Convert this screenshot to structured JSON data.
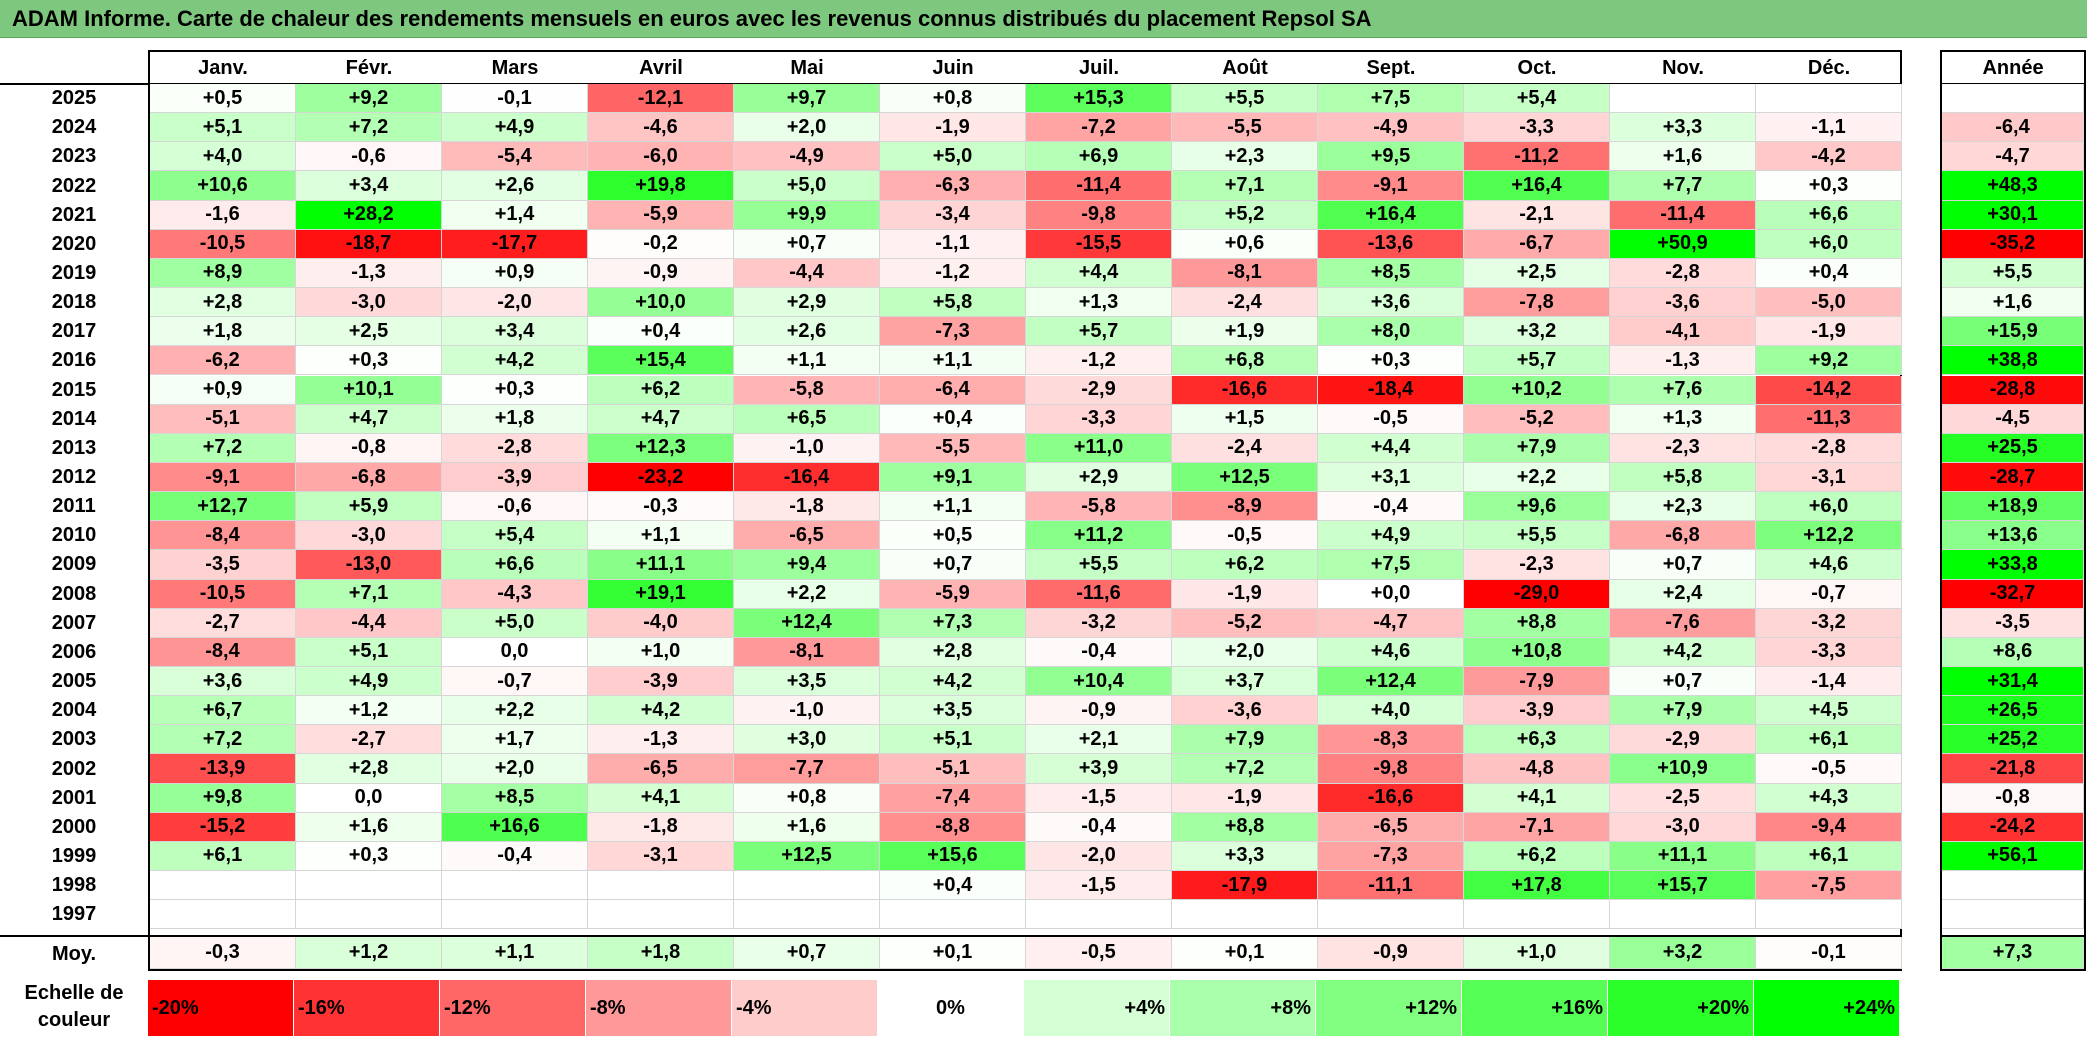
{
  "title": "ADAM Informe. Carte de chaleur des rendements mensuels en euros avec les revenus connus distribués du placement Repsol SA",
  "colors": {
    "title_bg": "#7ec77e",
    "neg_max": "#ff0000",
    "pos_max": "#00ff00",
    "neutral": "#ffffff"
  },
  "chart_data": {
    "type": "heatmap",
    "title": "ADAM Informe. Carte de chaleur des rendements mensuels en euros avec les revenus connus distribués du placement Repsol SA",
    "months": [
      "Janv.",
      "Févr.",
      "Mars",
      "Avril",
      "Mai",
      "Juin",
      "Juil.",
      "Août",
      "Sept.",
      "Oct.",
      "Nov.",
      "Déc."
    ],
    "year_header": "Année",
    "rows": [
      {
        "year": "2025",
        "values": [
          "+0,5",
          "+9,2",
          "-0,1",
          "-12,1",
          "+9,7",
          "+0,8",
          "+15,3",
          "+5,5",
          "+7,5",
          "+5,4",
          "",
          ""
        ],
        "annual": ""
      },
      {
        "year": "2024",
        "values": [
          "+5,1",
          "+7,2",
          "+4,9",
          "-4,6",
          "+2,0",
          "-1,9",
          "-7,2",
          "-5,5",
          "-4,9",
          "-3,3",
          "+3,3",
          "-1,1"
        ],
        "annual": "-6,4"
      },
      {
        "year": "2023",
        "values": [
          "+4,0",
          "-0,6",
          "-5,4",
          "-6,0",
          "-4,9",
          "+5,0",
          "+6,9",
          "+2,3",
          "+9,5",
          "-11,2",
          "+1,6",
          "-4,2"
        ],
        "annual": "-4,7"
      },
      {
        "year": "2022",
        "values": [
          "+10,6",
          "+3,4",
          "+2,6",
          "+19,8",
          "+5,0",
          "-6,3",
          "-11,4",
          "+7,1",
          "-9,1",
          "+16,4",
          "+7,7",
          "+0,3"
        ],
        "annual": "+48,3"
      },
      {
        "year": "2021",
        "values": [
          "-1,6",
          "+28,2",
          "+1,4",
          "-5,9",
          "+9,9",
          "-3,4",
          "-9,8",
          "+5,2",
          "+16,4",
          "-2,1",
          "-11,4",
          "+6,6"
        ],
        "annual": "+30,1"
      },
      {
        "year": "2020",
        "values": [
          "-10,5",
          "-18,7",
          "-17,7",
          "-0,2",
          "+0,7",
          "-1,1",
          "-15,5",
          "+0,6",
          "-13,6",
          "-6,7",
          "+50,9",
          "+6,0"
        ],
        "annual": "-35,2"
      },
      {
        "year": "2019",
        "values": [
          "+8,9",
          "-1,3",
          "+0,9",
          "-0,9",
          "-4,4",
          "-1,2",
          "+4,4",
          "-8,1",
          "+8,5",
          "+2,5",
          "-2,8",
          "+0,4"
        ],
        "annual": "+5,5"
      },
      {
        "year": "2018",
        "values": [
          "+2,8",
          "-3,0",
          "-2,0",
          "+10,0",
          "+2,9",
          "+5,8",
          "+1,3",
          "-2,4",
          "+3,6",
          "-7,8",
          "-3,6",
          "-5,0"
        ],
        "annual": "+1,6"
      },
      {
        "year": "2017",
        "values": [
          "+1,8",
          "+2,5",
          "+3,4",
          "+0,4",
          "+2,6",
          "-7,3",
          "+5,7",
          "+1,9",
          "+8,0",
          "+3,2",
          "-4,1",
          "-1,9"
        ],
        "annual": "+15,9"
      },
      {
        "year": "2016",
        "values": [
          "-6,2",
          "+0,3",
          "+4,2",
          "+15,4",
          "+1,1",
          "+1,1",
          "-1,2",
          "+6,8",
          "+0,3",
          "+5,7",
          "-1,3",
          "+9,2"
        ],
        "annual": "+38,8"
      },
      {
        "year": "2015",
        "values": [
          "+0,9",
          "+10,1",
          "+0,3",
          "+6,2",
          "-5,8",
          "-6,4",
          "-2,9",
          "-16,6",
          "-18,4",
          "+10,2",
          "+7,6",
          "-14,2"
        ],
        "annual": "-28,8"
      },
      {
        "year": "2014",
        "values": [
          "-5,1",
          "+4,7",
          "+1,8",
          "+4,7",
          "+6,5",
          "+0,4",
          "-3,3",
          "+1,5",
          "-0,5",
          "-5,2",
          "+1,3",
          "-11,3"
        ],
        "annual": "-4,5"
      },
      {
        "year": "2013",
        "values": [
          "+7,2",
          "-0,8",
          "-2,8",
          "+12,3",
          "-1,0",
          "-5,5",
          "+11,0",
          "-2,4",
          "+4,4",
          "+7,9",
          "-2,3",
          "-2,8"
        ],
        "annual": "+25,5"
      },
      {
        "year": "2012",
        "values": [
          "-9,1",
          "-6,8",
          "-3,9",
          "-23,2",
          "-16,4",
          "+9,1",
          "+2,9",
          "+12,5",
          "+3,1",
          "+2,2",
          "+5,8",
          "-3,1"
        ],
        "annual": "-28,7"
      },
      {
        "year": "2011",
        "values": [
          "+12,7",
          "+5,9",
          "-0,6",
          "-0,3",
          "-1,8",
          "+1,1",
          "-5,8",
          "-8,9",
          "-0,4",
          "+9,6",
          "+2,3",
          "+6,0"
        ],
        "annual": "+18,9"
      },
      {
        "year": "2010",
        "values": [
          "-8,4",
          "-3,0",
          "+5,4",
          "+1,1",
          "-6,5",
          "+0,5",
          "+11,2",
          "-0,5",
          "+4,9",
          "+5,5",
          "-6,8",
          "+12,2"
        ],
        "annual": "+13,6"
      },
      {
        "year": "2009",
        "values": [
          "-3,5",
          "-13,0",
          "+6,6",
          "+11,1",
          "+9,4",
          "+0,7",
          "+5,5",
          "+6,2",
          "+7,5",
          "-2,3",
          "+0,7",
          "+4,6"
        ],
        "annual": "+33,8"
      },
      {
        "year": "2008",
        "values": [
          "-10,5",
          "+7,1",
          "-4,3",
          "+19,1",
          "+2,2",
          "-5,9",
          "-11,6",
          "-1,9",
          "+0,0",
          "-29,0",
          "+2,4",
          "-0,7"
        ],
        "annual": "-32,7"
      },
      {
        "year": "2007",
        "values": [
          "-2,7",
          "-4,4",
          "+5,0",
          "-4,0",
          "+12,4",
          "+7,3",
          "-3,2",
          "-5,2",
          "-4,7",
          "+8,8",
          "-7,6",
          "-3,2"
        ],
        "annual": "-3,5"
      },
      {
        "year": "2006",
        "values": [
          "-8,4",
          "+5,1",
          "0,0",
          "+1,0",
          "-8,1",
          "+2,8",
          "-0,4",
          "+2,0",
          "+4,6",
          "+10,8",
          "+4,2",
          "-3,3"
        ],
        "annual": "+8,6"
      },
      {
        "year": "2005",
        "values": [
          "+3,6",
          "+4,9",
          "-0,7",
          "-3,9",
          "+3,5",
          "+4,2",
          "+10,4",
          "+3,7",
          "+12,4",
          "-7,9",
          "+0,7",
          "-1,4"
        ],
        "annual": "+31,4"
      },
      {
        "year": "2004",
        "values": [
          "+6,7",
          "+1,2",
          "+2,2",
          "+4,2",
          "-1,0",
          "+3,5",
          "-0,9",
          "-3,6",
          "+4,0",
          "-3,9",
          "+7,9",
          "+4,5"
        ],
        "annual": "+26,5"
      },
      {
        "year": "2003",
        "values": [
          "+7,2",
          "-2,7",
          "+1,7",
          "-1,3",
          "+3,0",
          "+5,1",
          "+2,1",
          "+7,9",
          "-8,3",
          "+6,3",
          "-2,9",
          "+6,1"
        ],
        "annual": "+25,2"
      },
      {
        "year": "2002",
        "values": [
          "-13,9",
          "+2,8",
          "+2,0",
          "-6,5",
          "-7,7",
          "-5,1",
          "+3,9",
          "+7,2",
          "-9,8",
          "-4,8",
          "+10,9",
          "-0,5"
        ],
        "annual": "-21,8"
      },
      {
        "year": "2001",
        "values": [
          "+9,8",
          "0,0",
          "+8,5",
          "+4,1",
          "+0,8",
          "-7,4",
          "-1,5",
          "-1,9",
          "-16,6",
          "+4,1",
          "-2,5",
          "+4,3"
        ],
        "annual": "-0,8"
      },
      {
        "year": "2000",
        "values": [
          "-15,2",
          "+1,6",
          "+16,6",
          "-1,8",
          "+1,6",
          "-8,8",
          "-0,4",
          "+8,8",
          "-6,5",
          "-7,1",
          "-3,0",
          "-9,4"
        ],
        "annual": "-24,2"
      },
      {
        "year": "1999",
        "values": [
          "+6,1",
          "+0,3",
          "-0,4",
          "-3,1",
          "+12,5",
          "+15,6",
          "-2,0",
          "+3,3",
          "-7,3",
          "+6,2",
          "+11,1",
          "+6,1"
        ],
        "annual": "+56,1"
      },
      {
        "year": "1998",
        "values": [
          "",
          "",
          "",
          "",
          "",
          "+0,4",
          "-1,5",
          "-17,9",
          "-11,1",
          "+17,8",
          "+15,7",
          "-7,5"
        ],
        "annual": ""
      },
      {
        "year": "1997",
        "values": [
          "",
          "",
          "",
          "",
          "",
          "",
          "",
          "",
          "",
          "",
          "",
          ""
        ],
        "annual": ""
      }
    ],
    "average": {
      "label": "Moy.",
      "values": [
        "-0,3",
        "+1,2",
        "+1,1",
        "+1,8",
        "+0,7",
        "+0,1",
        "-0,5",
        "+0,1",
        "-0,9",
        "+1,0",
        "+3,2",
        "-0,1"
      ],
      "annual": "+7,3"
    },
    "legend": {
      "title": "Echelle de couleur",
      "items": [
        "-20%",
        "-16%",
        "-12%",
        "-8%",
        "-4%",
        "0%",
        "+4%",
        "+8%",
        "+12%",
        "+16%",
        "+20%",
        "+24%"
      ],
      "values": [
        -20,
        -16,
        -12,
        -8,
        -4,
        0,
        4,
        8,
        12,
        16,
        20,
        24
      ]
    },
    "color_scale": {
      "min": -20,
      "max": 24,
      "annual_min": -30,
      "annual_max": 30
    }
  }
}
